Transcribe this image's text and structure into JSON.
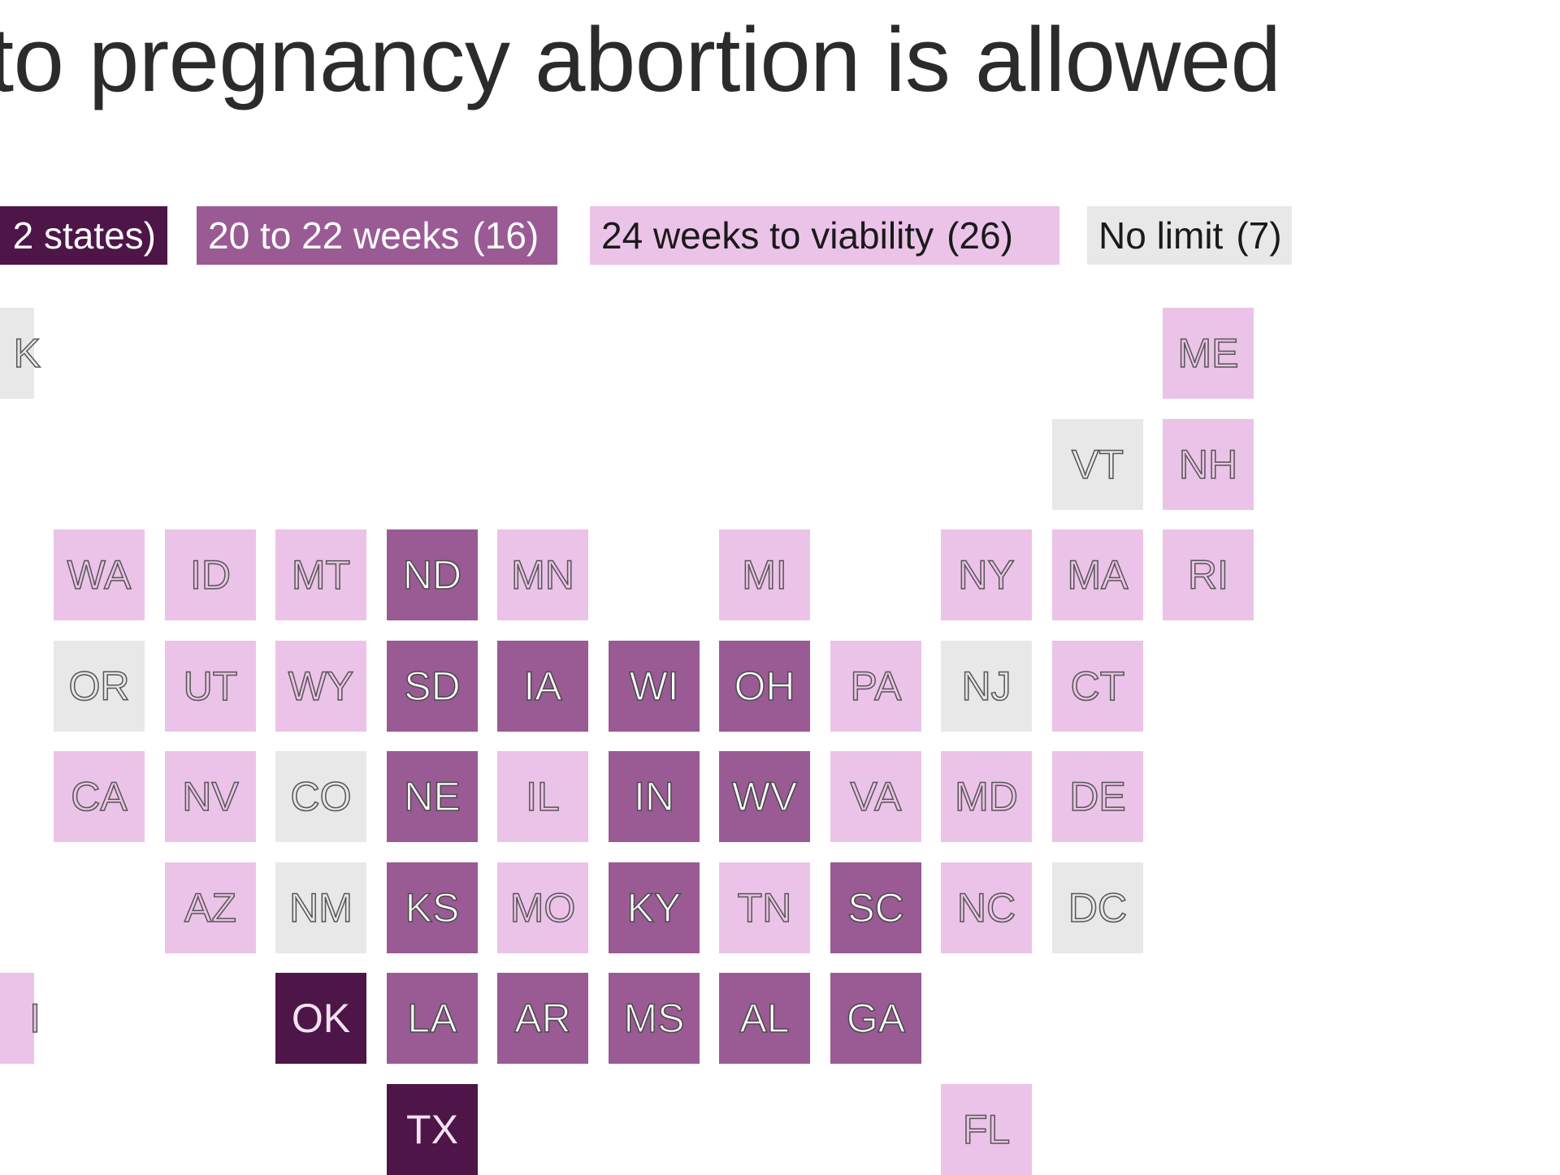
{
  "title": "to pregnancy abortion is allowed",
  "colors": {
    "category_1": "#4e1548",
    "category_2": "#9a5a94",
    "category_3": "#ecc3e8",
    "category_4": "#e8e8e9"
  },
  "legend": [
    {
      "label": "2 states)",
      "count": "",
      "category": 1,
      "text_color": "#ffffff"
    },
    {
      "label": "20 to 22 weeks",
      "count": "(16)",
      "category": 2,
      "text_color": "#ffffff"
    },
    {
      "label": "24 weeks to viability",
      "count": "(26)",
      "category": 3,
      "text_color": "#1a1a1a"
    },
    {
      "label": "No limit",
      "count": "(7)",
      "category": 4,
      "text_color": "#1a1a1a"
    }
  ],
  "states": [
    {
      "abbr": "K",
      "row": 0,
      "col": -1,
      "category": 4
    },
    {
      "abbr": "ME",
      "row": 0,
      "col": 10,
      "category": 3
    },
    {
      "abbr": "VT",
      "row": 1,
      "col": 9,
      "category": 4
    },
    {
      "abbr": "NH",
      "row": 1,
      "col": 10,
      "category": 3
    },
    {
      "abbr": "WA",
      "row": 2,
      "col": 0,
      "category": 3
    },
    {
      "abbr": "ID",
      "row": 2,
      "col": 1,
      "category": 3
    },
    {
      "abbr": "MT",
      "row": 2,
      "col": 2,
      "category": 3
    },
    {
      "abbr": "ND",
      "row": 2,
      "col": 3,
      "category": 2
    },
    {
      "abbr": "MN",
      "row": 2,
      "col": 4,
      "category": 3
    },
    {
      "abbr": "MI",
      "row": 2,
      "col": 6,
      "category": 3
    },
    {
      "abbr": "NY",
      "row": 2,
      "col": 8,
      "category": 3
    },
    {
      "abbr": "MA",
      "row": 2,
      "col": 9,
      "category": 3
    },
    {
      "abbr": "RI",
      "row": 2,
      "col": 10,
      "category": 3
    },
    {
      "abbr": "OR",
      "row": 3,
      "col": 0,
      "category": 4
    },
    {
      "abbr": "UT",
      "row": 3,
      "col": 1,
      "category": 3
    },
    {
      "abbr": "WY",
      "row": 3,
      "col": 2,
      "category": 3
    },
    {
      "abbr": "SD",
      "row": 3,
      "col": 3,
      "category": 2
    },
    {
      "abbr": "IA",
      "row": 3,
      "col": 4,
      "category": 2
    },
    {
      "abbr": "WI",
      "row": 3,
      "col": 5,
      "category": 2
    },
    {
      "abbr": "OH",
      "row": 3,
      "col": 6,
      "category": 2
    },
    {
      "abbr": "PA",
      "row": 3,
      "col": 7,
      "category": 3
    },
    {
      "abbr": "NJ",
      "row": 3,
      "col": 8,
      "category": 4
    },
    {
      "abbr": "CT",
      "row": 3,
      "col": 9,
      "category": 3
    },
    {
      "abbr": "CA",
      "row": 4,
      "col": 0,
      "category": 3
    },
    {
      "abbr": "NV",
      "row": 4,
      "col": 1,
      "category": 3
    },
    {
      "abbr": "CO",
      "row": 4,
      "col": 2,
      "category": 4
    },
    {
      "abbr": "NE",
      "row": 4,
      "col": 3,
      "category": 2
    },
    {
      "abbr": "IL",
      "row": 4,
      "col": 4,
      "category": 3
    },
    {
      "abbr": "IN",
      "row": 4,
      "col": 5,
      "category": 2
    },
    {
      "abbr": "WV",
      "row": 4,
      "col": 6,
      "category": 2
    },
    {
      "abbr": "VA",
      "row": 4,
      "col": 7,
      "category": 3
    },
    {
      "abbr": "MD",
      "row": 4,
      "col": 8,
      "category": 3
    },
    {
      "abbr": "DE",
      "row": 4,
      "col": 9,
      "category": 3
    },
    {
      "abbr": "AZ",
      "row": 5,
      "col": 1,
      "category": 3
    },
    {
      "abbr": "NM",
      "row": 5,
      "col": 2,
      "category": 4
    },
    {
      "abbr": "KS",
      "row": 5,
      "col": 3,
      "category": 2
    },
    {
      "abbr": "MO",
      "row": 5,
      "col": 4,
      "category": 3
    },
    {
      "abbr": "KY",
      "row": 5,
      "col": 5,
      "category": 2
    },
    {
      "abbr": "TN",
      "row": 5,
      "col": 6,
      "category": 3
    },
    {
      "abbr": "SC",
      "row": 5,
      "col": 7,
      "category": 2
    },
    {
      "abbr": "NC",
      "row": 5,
      "col": 8,
      "category": 3
    },
    {
      "abbr": "DC",
      "row": 5,
      "col": 9,
      "category": 4
    },
    {
      "abbr": "I",
      "row": 6,
      "col": -1,
      "category": 3
    },
    {
      "abbr": "OK",
      "row": 6,
      "col": 2,
      "category": 1
    },
    {
      "abbr": "LA",
      "row": 6,
      "col": 3,
      "category": 2
    },
    {
      "abbr": "AR",
      "row": 6,
      "col": 4,
      "category": 2
    },
    {
      "abbr": "MS",
      "row": 6,
      "col": 5,
      "category": 2
    },
    {
      "abbr": "AL",
      "row": 6,
      "col": 6,
      "category": 2
    },
    {
      "abbr": "GA",
      "row": 6,
      "col": 7,
      "category": 2
    },
    {
      "abbr": "TX",
      "row": 7,
      "col": 3,
      "category": 1
    },
    {
      "abbr": "FL",
      "row": 7,
      "col": 8,
      "category": 3
    }
  ]
}
